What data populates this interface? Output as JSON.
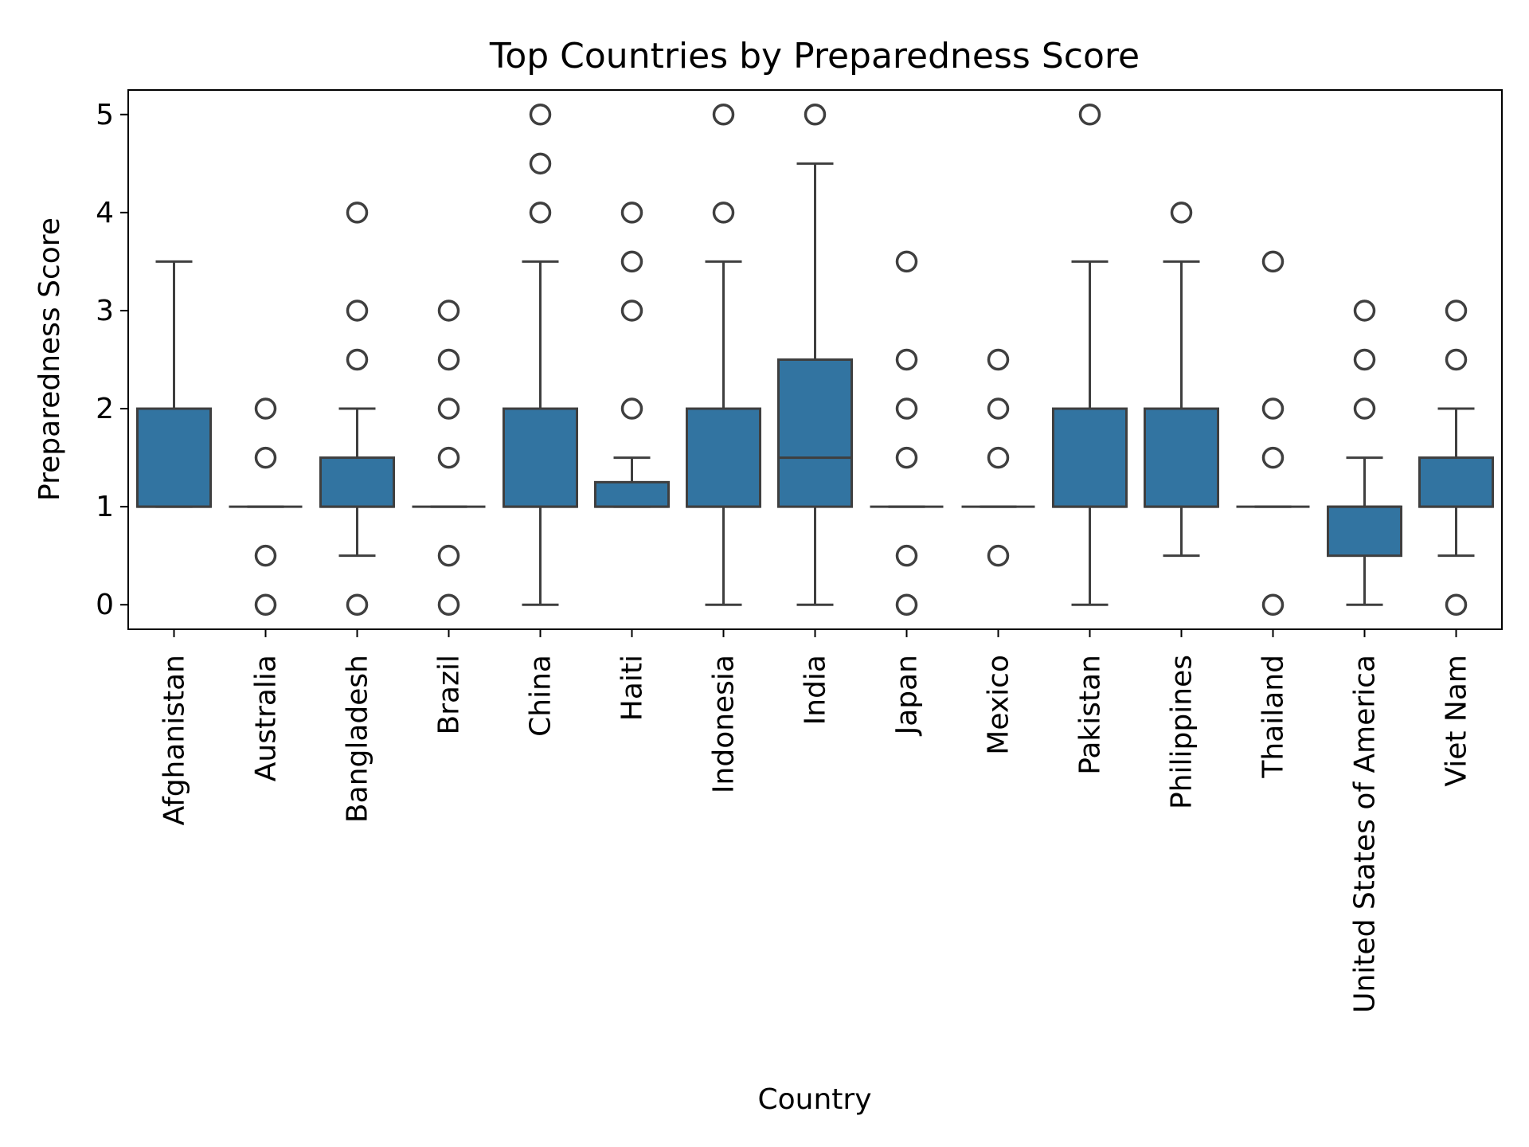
{
  "chart_data": {
    "type": "box",
    "title": "Top Countries by Preparedness Score",
    "xlabel": "Country",
    "ylabel": "Preparedness Score",
    "ylim": [
      -0.25,
      5.25
    ],
    "yticks": [
      0,
      1,
      2,
      3,
      4,
      5
    ],
    "grid": false,
    "box_color": "#3274a1",
    "line_color": "#3f3f3f",
    "categories": [
      {
        "name": "Afghanistan",
        "q1": 1,
        "median": 1,
        "q3": 2,
        "whisker_low": 1,
        "whisker_high": 3.5,
        "outliers": []
      },
      {
        "name": "Australia",
        "q1": 1,
        "median": 1,
        "q3": 1,
        "whisker_low": 1,
        "whisker_high": 1,
        "outliers": [
          2,
          1.5,
          0.5,
          0
        ]
      },
      {
        "name": "Bangladesh",
        "q1": 1,
        "median": 1,
        "q3": 1.5,
        "whisker_low": 0.5,
        "whisker_high": 2,
        "outliers": [
          4,
          3,
          2.5,
          0
        ]
      },
      {
        "name": "Brazil",
        "q1": 1,
        "median": 1,
        "q3": 1,
        "whisker_low": 1,
        "whisker_high": 1,
        "outliers": [
          3,
          2.5,
          2,
          1.5,
          0.5,
          0
        ]
      },
      {
        "name": "China",
        "q1": 1,
        "median": 1,
        "q3": 2,
        "whisker_low": 0,
        "whisker_high": 3.5,
        "outliers": [
          5,
          4.5,
          4
        ]
      },
      {
        "name": "Haiti",
        "q1": 1,
        "median": 1,
        "q3": 1.25,
        "whisker_low": 1,
        "whisker_high": 1.5,
        "outliers": [
          4,
          3.5,
          3,
          2
        ]
      },
      {
        "name": "Indonesia",
        "q1": 1,
        "median": 1,
        "q3": 2,
        "whisker_low": 0,
        "whisker_high": 3.5,
        "outliers": [
          5,
          4
        ]
      },
      {
        "name": "India",
        "q1": 1,
        "median": 1.5,
        "q3": 2.5,
        "whisker_low": 0,
        "whisker_high": 4.5,
        "outliers": [
          5
        ]
      },
      {
        "name": "Japan",
        "q1": 1,
        "median": 1,
        "q3": 1,
        "whisker_low": 1,
        "whisker_high": 1,
        "outliers": [
          3.5,
          2.5,
          2,
          1.5,
          0.5,
          0
        ]
      },
      {
        "name": "Mexico",
        "q1": 1,
        "median": 1,
        "q3": 1,
        "whisker_low": 1,
        "whisker_high": 1,
        "outliers": [
          2.5,
          2,
          1.5,
          0.5
        ]
      },
      {
        "name": "Pakistan",
        "q1": 1,
        "median": 1,
        "q3": 2,
        "whisker_low": 0,
        "whisker_high": 3.5,
        "outliers": [
          5
        ]
      },
      {
        "name": "Philippines",
        "q1": 1,
        "median": 1,
        "q3": 2,
        "whisker_low": 0.5,
        "whisker_high": 3.5,
        "outliers": [
          4
        ]
      },
      {
        "name": "Thailand",
        "q1": 1,
        "median": 1,
        "q3": 1,
        "whisker_low": 1,
        "whisker_high": 1,
        "outliers": [
          3.5,
          2,
          1.5,
          0
        ]
      },
      {
        "name": "United States of America",
        "q1": 0.5,
        "median": 1,
        "q3": 1,
        "whisker_low": 0,
        "whisker_high": 1.5,
        "outliers": [
          3,
          2.5,
          2
        ]
      },
      {
        "name": "Viet Nam",
        "q1": 1,
        "median": 1,
        "q3": 1.5,
        "whisker_low": 0.5,
        "whisker_high": 2,
        "outliers": [
          3,
          2.5,
          0
        ]
      }
    ]
  }
}
